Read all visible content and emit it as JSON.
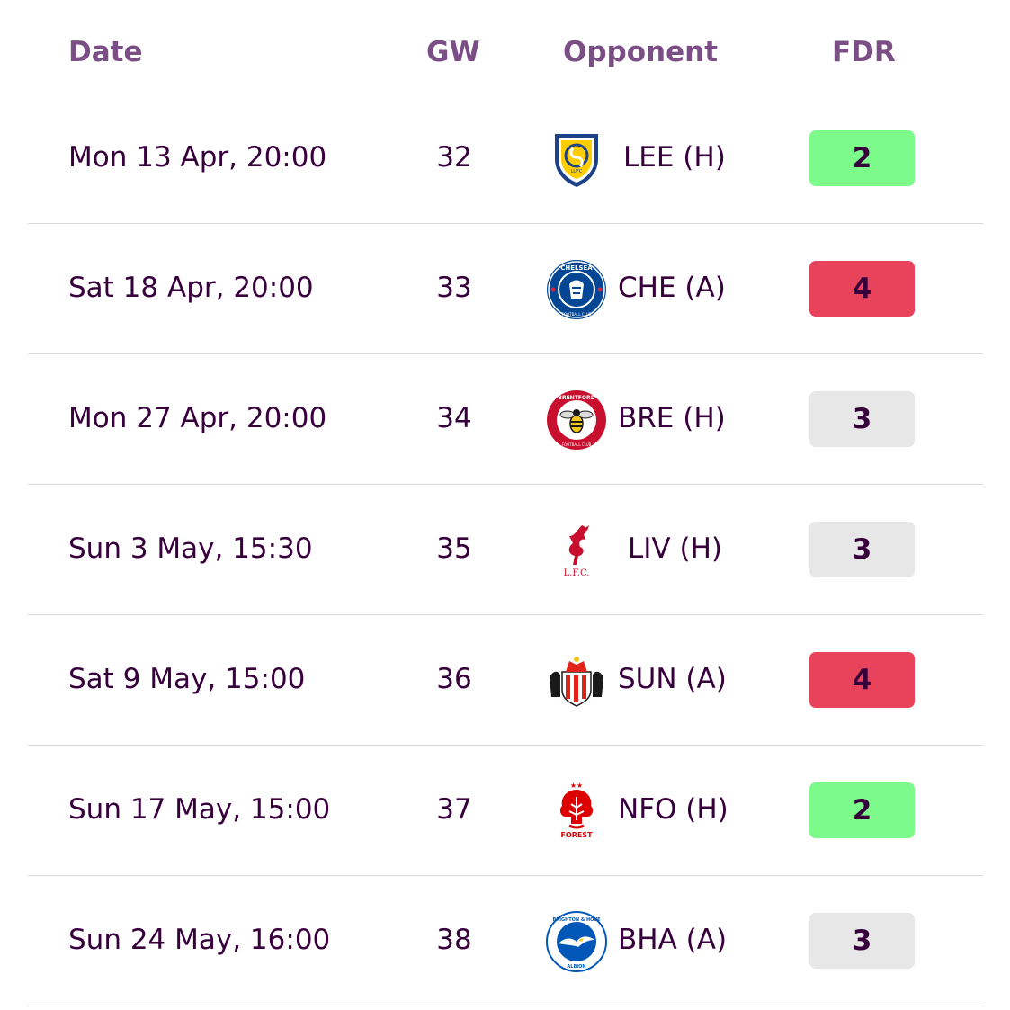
{
  "headers": {
    "date": "Date",
    "gw": "GW",
    "opponent": "Opponent",
    "fdr": "FDR"
  },
  "fixtures": [
    {
      "date": "Mon 13 Apr, 20:00",
      "gw": "32",
      "opponent": "LEE (H)",
      "crest": "leeds-crest-icon",
      "fdr": "2"
    },
    {
      "date": "Sat 18 Apr, 20:00",
      "gw": "33",
      "opponent": "CHE (A)",
      "crest": "chelsea-crest-icon",
      "fdr": "4"
    },
    {
      "date": "Mon 27 Apr, 20:00",
      "gw": "34",
      "opponent": "BRE (H)",
      "crest": "brentford-crest-icon",
      "fdr": "3"
    },
    {
      "date": "Sun 3 May, 15:30",
      "gw": "35",
      "opponent": "LIV (H)",
      "crest": "liverpool-crest-icon",
      "fdr": "3"
    },
    {
      "date": "Sat 9 May, 15:00",
      "gw": "36",
      "opponent": "SUN (A)",
      "crest": "sunderland-crest-icon",
      "fdr": "4"
    },
    {
      "date": "Sun 17 May, 15:00",
      "gw": "37",
      "opponent": "NFO (H)",
      "crest": "forest-crest-icon",
      "fdr": "2"
    },
    {
      "date": "Sun 24 May, 16:00",
      "gw": "38",
      "opponent": "BHA (A)",
      "crest": "brighton-crest-icon",
      "fdr": "3"
    }
  ],
  "colors": {
    "fdr_2": "#7dfb8a",
    "fdr_3": "#e7e7e7",
    "fdr_4": "#e8435b",
    "text": "#37003c",
    "header": "#7b4f86"
  },
  "crest_text": {
    "leeds": "LUFC",
    "chelsea_top": "CHELSEA",
    "chelsea_bottom": "FOOTBALL CLUB",
    "brentford_top": "BRENTFORD",
    "brentford_bottom": "FOOTBALL CLUB",
    "liverpool": "L.F.C.",
    "forest": "FOREST",
    "brighton_top": "BRIGHTON & HOVE",
    "brighton_bottom": "ALBION"
  }
}
